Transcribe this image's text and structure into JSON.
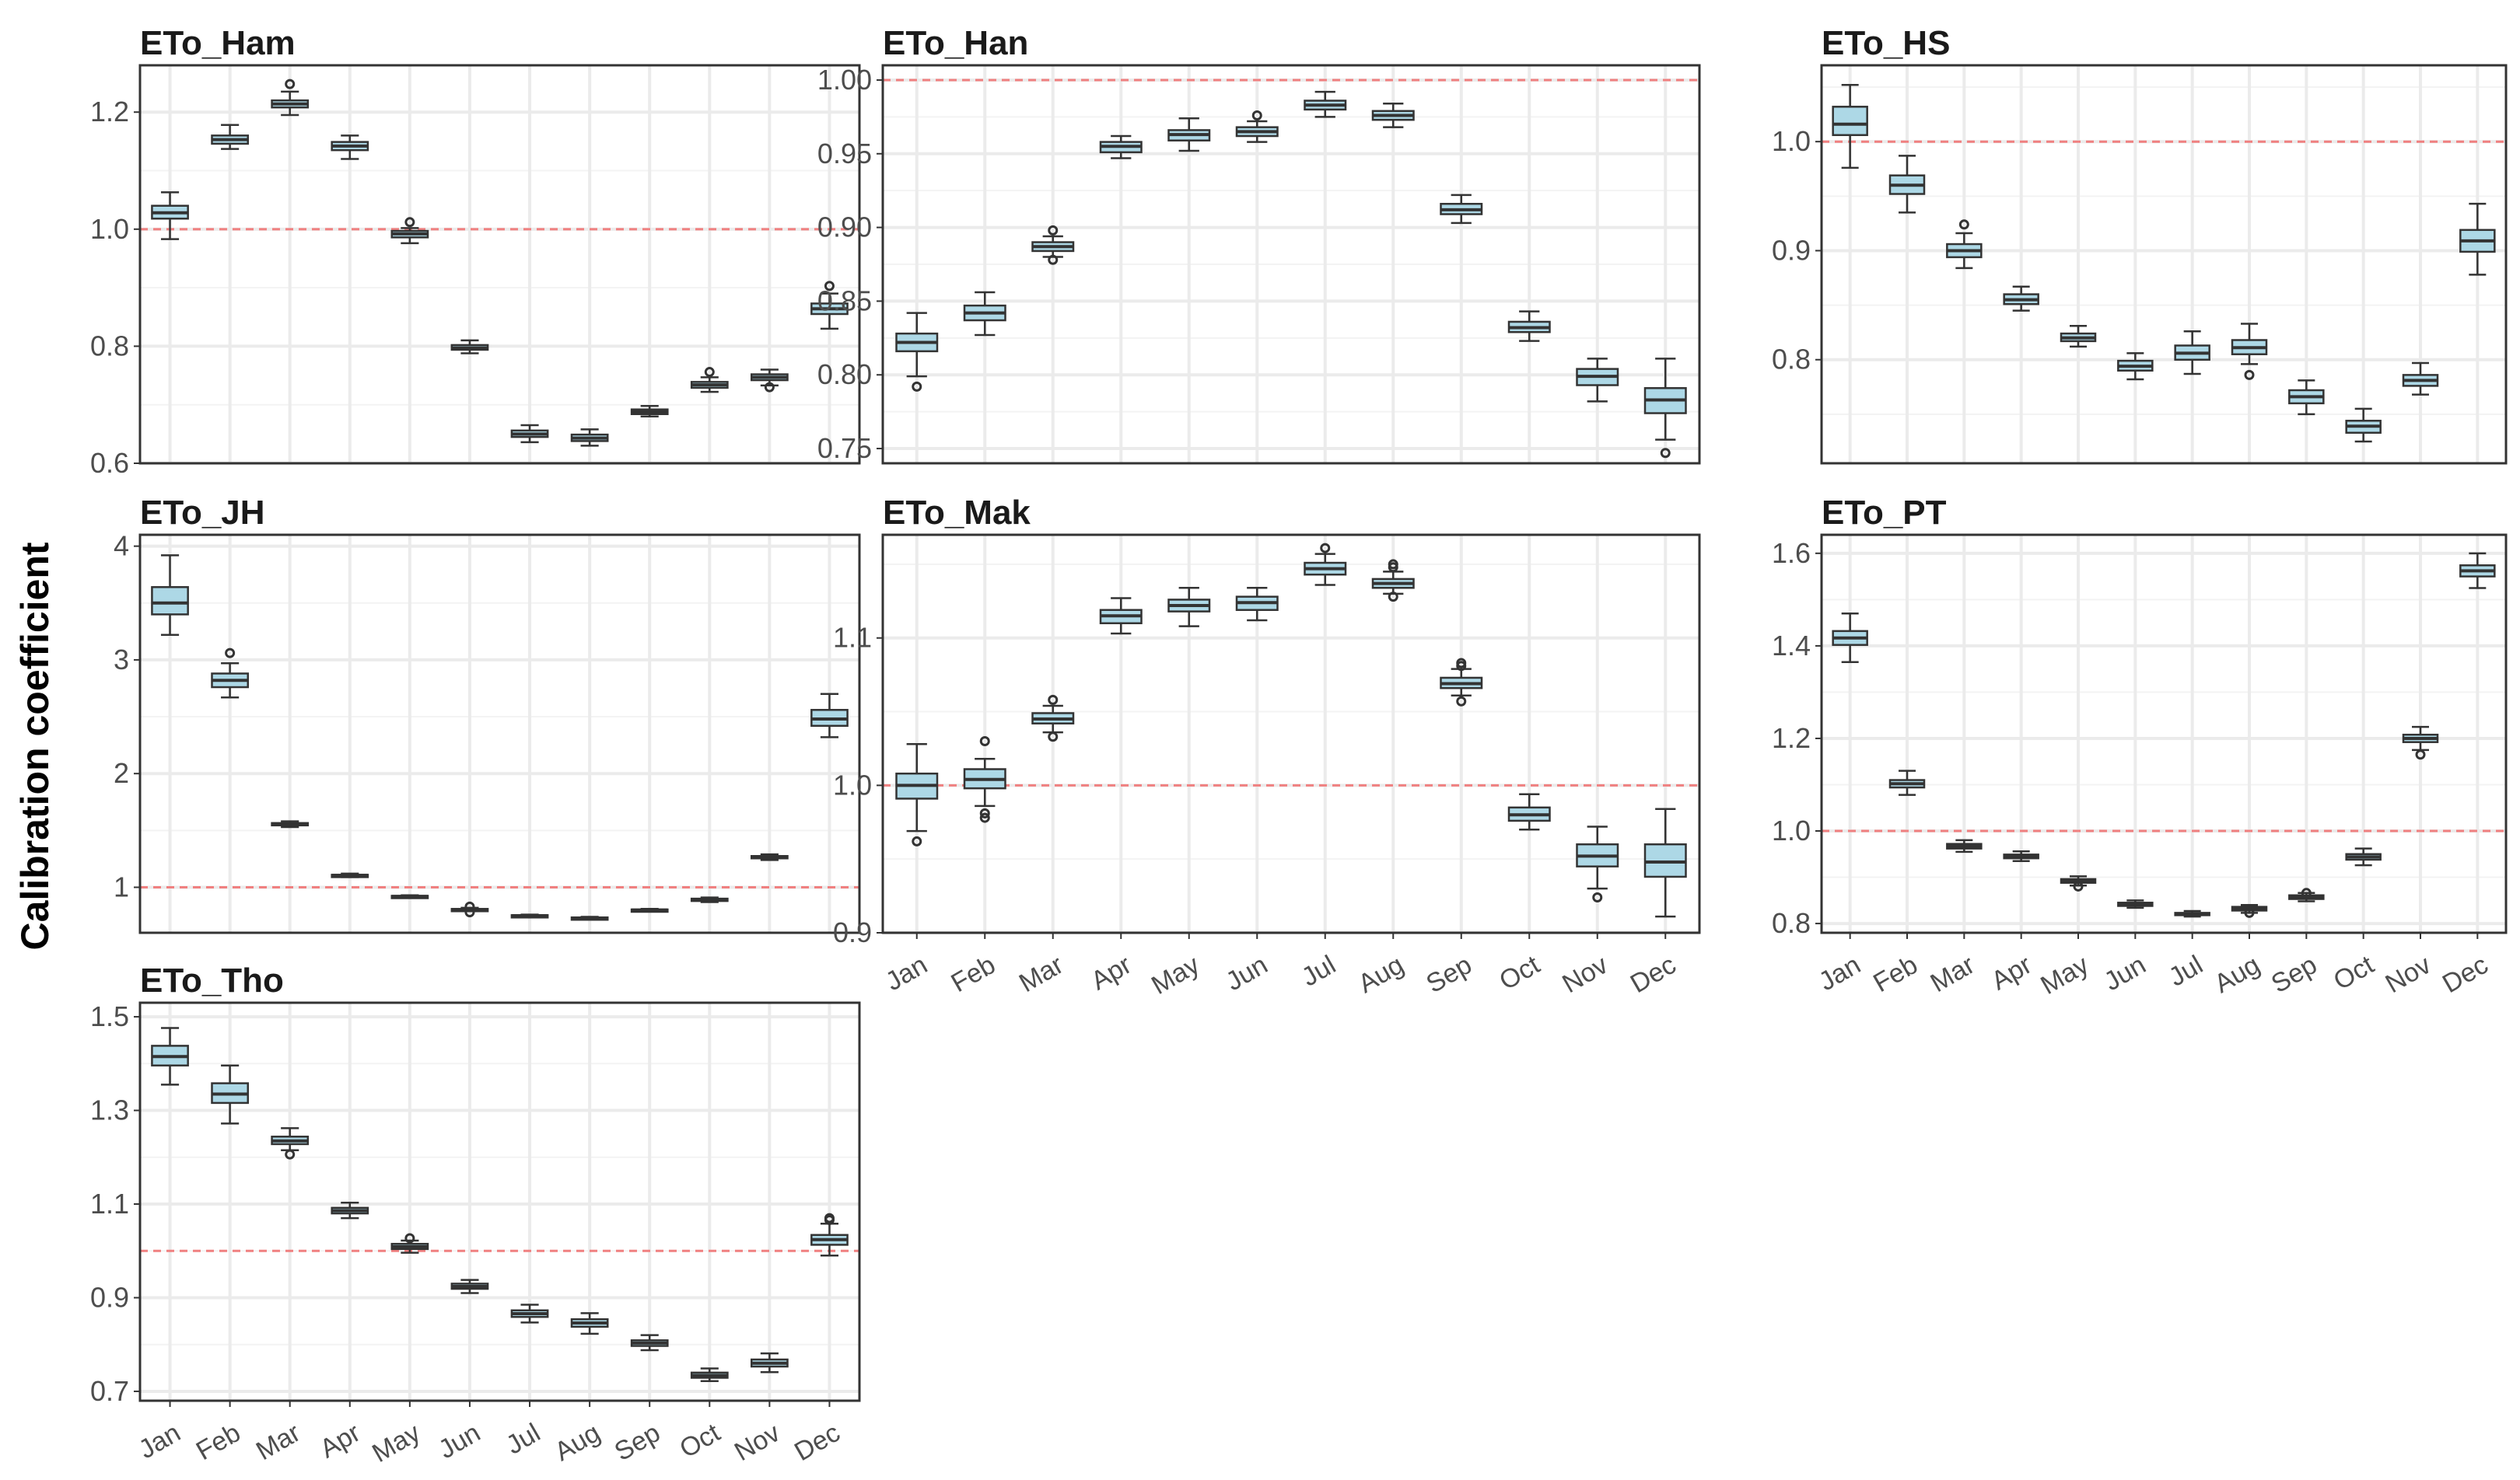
{
  "chart_data": {
    "type": "boxplot",
    "ylabel": "Calibration coefficient",
    "reference_line": 1.0,
    "colors": {
      "box_fill": "#add8e6",
      "box_stroke": "#333333",
      "reference_line": "#f08080",
      "grid": "#ebebeb",
      "panel_border": "#333333"
    },
    "categories": [
      "Jan",
      "Feb",
      "Mar",
      "Apr",
      "May",
      "Jun",
      "Jul",
      "Aug",
      "Sep",
      "Oct",
      "Nov",
      "Dec"
    ],
    "panels": [
      {
        "title": "ETo_Ham",
        "ylim": [
          0.6,
          1.28
        ],
        "yticks": [
          0.6,
          0.8,
          1.0,
          1.2
        ],
        "ytick_labels": [
          "0.6",
          "0.8",
          "1.0",
          "1.2"
        ],
        "show_x_labels": false,
        "boxes": [
          {
            "min": 0.983,
            "q1": 1.018,
            "median": 1.028,
            "q3": 1.04,
            "max": 1.063,
            "outliers": []
          },
          {
            "min": 1.137,
            "q1": 1.146,
            "median": 1.153,
            "q3": 1.16,
            "max": 1.178,
            "outliers": []
          },
          {
            "min": 1.195,
            "q1": 1.208,
            "median": 1.214,
            "q3": 1.22,
            "max": 1.235,
            "outliers": [
              1.248
            ]
          },
          {
            "min": 1.12,
            "q1": 1.135,
            "median": 1.142,
            "q3": 1.149,
            "max": 1.16,
            "outliers": []
          },
          {
            "min": 0.976,
            "q1": 0.986,
            "median": 0.992,
            "q3": 0.997,
            "max": 1.002,
            "outliers": [
              1.012
            ]
          },
          {
            "min": 0.788,
            "q1": 0.794,
            "median": 0.797,
            "q3": 0.802,
            "max": 0.81,
            "outliers": []
          },
          {
            "min": 0.636,
            "q1": 0.645,
            "median": 0.65,
            "q3": 0.656,
            "max": 0.665,
            "outliers": []
          },
          {
            "min": 0.63,
            "q1": 0.638,
            "median": 0.643,
            "q3": 0.649,
            "max": 0.658,
            "outliers": []
          },
          {
            "min": 0.68,
            "q1": 0.684,
            "median": 0.688,
            "q3": 0.692,
            "max": 0.698,
            "outliers": []
          },
          {
            "min": 0.722,
            "q1": 0.729,
            "median": 0.734,
            "q3": 0.739,
            "max": 0.747,
            "outliers": [
              0.756
            ]
          },
          {
            "min": 0.733,
            "q1": 0.742,
            "median": 0.747,
            "q3": 0.752,
            "max": 0.76,
            "outliers": [
              0.73
            ]
          },
          {
            "min": 0.83,
            "q1": 0.855,
            "median": 0.864,
            "q3": 0.873,
            "max": 0.89,
            "outliers": [
              0.903
            ]
          }
        ]
      },
      {
        "title": "ETo_Han",
        "ylim": [
          0.74,
          1.01
        ],
        "yticks": [
          0.75,
          0.8,
          0.85,
          0.9,
          0.95,
          1.0
        ],
        "ytick_labels": [
          "0.75",
          "0.80",
          "0.85",
          "0.90",
          "0.95",
          "1.00"
        ],
        "show_x_labels": false,
        "boxes": [
          {
            "min": 0.799,
            "q1": 0.816,
            "median": 0.822,
            "q3": 0.828,
            "max": 0.842,
            "outliers": [
              0.792
            ]
          },
          {
            "min": 0.827,
            "q1": 0.837,
            "median": 0.842,
            "q3": 0.847,
            "max": 0.856,
            "outliers": []
          },
          {
            "min": 0.88,
            "q1": 0.884,
            "median": 0.887,
            "q3": 0.89,
            "max": 0.894,
            "outliers": [
              0.898,
              0.878
            ]
          },
          {
            "min": 0.947,
            "q1": 0.951,
            "median": 0.955,
            "q3": 0.958,
            "max": 0.962,
            "outliers": []
          },
          {
            "min": 0.952,
            "q1": 0.959,
            "median": 0.963,
            "q3": 0.966,
            "max": 0.974,
            "outliers": []
          },
          {
            "min": 0.958,
            "q1": 0.962,
            "median": 0.965,
            "q3": 0.968,
            "max": 0.972,
            "outliers": [
              0.976
            ]
          },
          {
            "min": 0.975,
            "q1": 0.98,
            "median": 0.983,
            "q3": 0.986,
            "max": 0.992,
            "outliers": []
          },
          {
            "min": 0.968,
            "q1": 0.973,
            "median": 0.976,
            "q3": 0.979,
            "max": 0.984,
            "outliers": []
          },
          {
            "min": 0.903,
            "q1": 0.909,
            "median": 0.912,
            "q3": 0.916,
            "max": 0.922,
            "outliers": []
          },
          {
            "min": 0.823,
            "q1": 0.829,
            "median": 0.832,
            "q3": 0.836,
            "max": 0.843,
            "outliers": []
          },
          {
            "min": 0.782,
            "q1": 0.793,
            "median": 0.799,
            "q3": 0.804,
            "max": 0.811,
            "outliers": []
          },
          {
            "min": 0.756,
            "q1": 0.774,
            "median": 0.783,
            "q3": 0.791,
            "max": 0.811,
            "outliers": [
              0.747
            ]
          }
        ]
      },
      {
        "title": "ETo_HS",
        "ylim": [
          0.705,
          1.07
        ],
        "yticks": [
          0.8,
          0.9,
          1.0
        ],
        "ytick_labels": [
          "0.8",
          "0.9",
          "1.0"
        ],
        "show_x_labels": false,
        "boxes": [
          {
            "min": 0.976,
            "q1": 1.006,
            "median": 1.016,
            "q3": 1.032,
            "max": 1.052,
            "outliers": []
          },
          {
            "min": 0.935,
            "q1": 0.952,
            "median": 0.96,
            "q3": 0.969,
            "max": 0.987,
            "outliers": []
          },
          {
            "min": 0.884,
            "q1": 0.894,
            "median": 0.9,
            "q3": 0.906,
            "max": 0.916,
            "outliers": [
              0.924
            ]
          },
          {
            "min": 0.845,
            "q1": 0.851,
            "median": 0.855,
            "q3": 0.86,
            "max": 0.867,
            "outliers": []
          },
          {
            "min": 0.812,
            "q1": 0.817,
            "median": 0.82,
            "q3": 0.824,
            "max": 0.831,
            "outliers": []
          },
          {
            "min": 0.782,
            "q1": 0.79,
            "median": 0.794,
            "q3": 0.799,
            "max": 0.806,
            "outliers": []
          },
          {
            "min": 0.787,
            "q1": 0.8,
            "median": 0.806,
            "q3": 0.813,
            "max": 0.826,
            "outliers": []
          },
          {
            "min": 0.796,
            "q1": 0.805,
            "median": 0.811,
            "q3": 0.818,
            "max": 0.833,
            "outliers": [
              0.786
            ]
          },
          {
            "min": 0.75,
            "q1": 0.76,
            "median": 0.766,
            "q3": 0.772,
            "max": 0.781,
            "outliers": []
          },
          {
            "min": 0.725,
            "q1": 0.733,
            "median": 0.739,
            "q3": 0.744,
            "max": 0.755,
            "outliers": []
          },
          {
            "min": 0.768,
            "q1": 0.776,
            "median": 0.781,
            "q3": 0.786,
            "max": 0.797,
            "outliers": []
          },
          {
            "min": 0.878,
            "q1": 0.899,
            "median": 0.909,
            "q3": 0.919,
            "max": 0.943,
            "outliers": []
          }
        ]
      },
      {
        "title": "ETo_JH",
        "ylim": [
          0.6,
          4.1
        ],
        "yticks": [
          1,
          2,
          3,
          4
        ],
        "ytick_labels": [
          "1",
          "2",
          "3",
          "4"
        ],
        "show_x_labels": false,
        "boxes": [
          {
            "min": 3.22,
            "q1": 3.4,
            "median": 3.5,
            "q3": 3.64,
            "max": 3.92,
            "outliers": []
          },
          {
            "min": 2.67,
            "q1": 2.76,
            "median": 2.82,
            "q3": 2.88,
            "max": 2.97,
            "outliers": [
              3.06
            ]
          },
          {
            "min": 1.53,
            "q1": 1.546,
            "median": 1.555,
            "q3": 1.565,
            "max": 1.58,
            "outliers": []
          },
          {
            "min": 1.09,
            "q1": 1.1,
            "median": 1.105,
            "q3": 1.11,
            "max": 1.12,
            "outliers": []
          },
          {
            "min": 0.91,
            "q1": 0.915,
            "median": 0.92,
            "q3": 0.925,
            "max": 0.93,
            "outliers": []
          },
          {
            "min": 0.79,
            "q1": 0.795,
            "median": 0.8,
            "q3": 0.81,
            "max": 0.82,
            "outliers": [
              0.83,
              0.78
            ]
          },
          {
            "min": 0.74,
            "q1": 0.745,
            "median": 0.75,
            "q3": 0.755,
            "max": 0.76,
            "outliers": []
          },
          {
            "min": 0.72,
            "q1": 0.725,
            "median": 0.73,
            "q3": 0.735,
            "max": 0.74,
            "outliers": []
          },
          {
            "min": 0.79,
            "q1": 0.795,
            "median": 0.8,
            "q3": 0.805,
            "max": 0.81,
            "outliers": []
          },
          {
            "min": 0.87,
            "q1": 0.88,
            "median": 0.89,
            "q3": 0.9,
            "max": 0.91,
            "outliers": []
          },
          {
            "min": 1.24,
            "q1": 1.255,
            "median": 1.265,
            "q3": 1.275,
            "max": 1.29,
            "outliers": []
          },
          {
            "min": 2.32,
            "q1": 2.42,
            "median": 2.48,
            "q3": 2.56,
            "max": 2.7,
            "outliers": []
          }
        ]
      },
      {
        "title": "ETo_Mak",
        "ylim": [
          0.9,
          1.17
        ],
        "yticks": [
          0.9,
          1.0,
          1.1
        ],
        "ytick_labels": [
          "0.9",
          "1.0",
          "1.1"
        ],
        "show_x_labels": true,
        "boxes": [
          {
            "min": 0.969,
            "q1": 0.991,
            "median": 1.0,
            "q3": 1.008,
            "max": 1.028,
            "outliers": [
              0.962
            ]
          },
          {
            "min": 0.986,
            "q1": 0.998,
            "median": 1.004,
            "q3": 1.011,
            "max": 1.018,
            "outliers": [
              1.03,
              0.978,
              0.981
            ]
          },
          {
            "min": 1.036,
            "q1": 1.042,
            "median": 1.045,
            "q3": 1.049,
            "max": 1.054,
            "outliers": [
              1.058,
              1.033
            ]
          },
          {
            "min": 1.103,
            "q1": 1.11,
            "median": 1.115,
            "q3": 1.119,
            "max": 1.127,
            "outliers": []
          },
          {
            "min": 1.108,
            "q1": 1.118,
            "median": 1.122,
            "q3": 1.126,
            "max": 1.134,
            "outliers": []
          },
          {
            "min": 1.112,
            "q1": 1.119,
            "median": 1.124,
            "q3": 1.128,
            "max": 1.134,
            "outliers": []
          },
          {
            "min": 1.136,
            "q1": 1.143,
            "median": 1.147,
            "q3": 1.151,
            "max": 1.157,
            "outliers": [
              1.161
            ]
          },
          {
            "min": 1.13,
            "q1": 1.134,
            "median": 1.137,
            "q3": 1.14,
            "max": 1.145,
            "outliers": [
              1.15,
              1.148,
              1.128
            ]
          },
          {
            "min": 1.061,
            "q1": 1.066,
            "median": 1.069,
            "q3": 1.073,
            "max": 1.079,
            "outliers": [
              1.083,
              1.081,
              1.057
            ]
          },
          {
            "min": 0.97,
            "q1": 0.976,
            "median": 0.98,
            "q3": 0.985,
            "max": 0.994,
            "outliers": []
          },
          {
            "min": 0.93,
            "q1": 0.945,
            "median": 0.952,
            "q3": 0.96,
            "max": 0.972,
            "outliers": [
              0.924
            ]
          },
          {
            "min": 0.911,
            "q1": 0.938,
            "median": 0.948,
            "q3": 0.96,
            "max": 0.984,
            "outliers": []
          }
        ]
      },
      {
        "title": "ETo_PT",
        "ylim": [
          0.78,
          1.64
        ],
        "yticks": [
          0.8,
          1.0,
          1.2,
          1.4,
          1.6
        ],
        "ytick_labels": [
          "0.8",
          "1.0",
          "1.2",
          "1.4",
          "1.6"
        ],
        "show_x_labels": true,
        "boxes": [
          {
            "min": 1.365,
            "q1": 1.402,
            "median": 1.417,
            "q3": 1.432,
            "max": 1.47,
            "outliers": []
          },
          {
            "min": 1.078,
            "q1": 1.094,
            "median": 1.102,
            "q3": 1.11,
            "max": 1.13,
            "outliers": []
          },
          {
            "min": 0.955,
            "q1": 0.962,
            "median": 0.967,
            "q3": 0.972,
            "max": 0.98,
            "outliers": []
          },
          {
            "min": 0.935,
            "q1": 0.941,
            "median": 0.945,
            "q3": 0.949,
            "max": 0.956,
            "outliers": []
          },
          {
            "min": 0.882,
            "q1": 0.888,
            "median": 0.892,
            "q3": 0.896,
            "max": 0.902,
            "outliers": [
              0.88
            ]
          },
          {
            "min": 0.834,
            "q1": 0.838,
            "median": 0.842,
            "q3": 0.845,
            "max": 0.85,
            "outliers": []
          },
          {
            "min": 0.815,
            "q1": 0.818,
            "median": 0.82,
            "q3": 0.823,
            "max": 0.827,
            "outliers": []
          },
          {
            "min": 0.823,
            "q1": 0.828,
            "median": 0.832,
            "q3": 0.836,
            "max": 0.84,
            "outliers": [
              0.823
            ]
          },
          {
            "min": 0.848,
            "q1": 0.853,
            "median": 0.857,
            "q3": 0.861,
            "max": 0.866,
            "outliers": [
              0.866
            ]
          },
          {
            "min": 0.926,
            "q1": 0.938,
            "median": 0.944,
            "q3": 0.95,
            "max": 0.962,
            "outliers": []
          },
          {
            "min": 1.175,
            "q1": 1.192,
            "median": 1.2,
            "q3": 1.208,
            "max": 1.225,
            "outliers": [
              1.165
            ]
          },
          {
            "min": 1.525,
            "q1": 1.55,
            "median": 1.562,
            "q3": 1.574,
            "max": 1.6,
            "outliers": []
          }
        ]
      },
      {
        "title": "ETo_Tho",
        "ylim": [
          0.68,
          1.53
        ],
        "yticks": [
          0.7,
          0.9,
          1.1,
          1.3,
          1.5
        ],
        "ytick_labels": [
          "0.7",
          "0.9",
          "1.1",
          "1.3",
          "1.5"
        ],
        "show_x_labels": true,
        "boxes": [
          {
            "min": 1.355,
            "q1": 1.396,
            "median": 1.415,
            "q3": 1.438,
            "max": 1.476,
            "outliers": []
          },
          {
            "min": 1.272,
            "q1": 1.316,
            "median": 1.335,
            "q3": 1.358,
            "max": 1.396,
            "outliers": []
          },
          {
            "min": 1.215,
            "q1": 1.228,
            "median": 1.235,
            "q3": 1.244,
            "max": 1.262,
            "outliers": [
              1.206
            ]
          },
          {
            "min": 1.07,
            "q1": 1.08,
            "median": 1.086,
            "q3": 1.092,
            "max": 1.103,
            "outliers": []
          },
          {
            "min": 0.996,
            "q1": 1.004,
            "median": 1.009,
            "q3": 1.015,
            "max": 1.022,
            "outliers": [
              1.027
            ]
          },
          {
            "min": 0.91,
            "q1": 0.919,
            "median": 0.924,
            "q3": 0.93,
            "max": 0.938,
            "outliers": []
          },
          {
            "min": 0.847,
            "q1": 0.859,
            "median": 0.866,
            "q3": 0.873,
            "max": 0.885,
            "outliers": []
          },
          {
            "min": 0.823,
            "q1": 0.838,
            "median": 0.846,
            "q3": 0.854,
            "max": 0.867,
            "outliers": []
          },
          {
            "min": 0.788,
            "q1": 0.797,
            "median": 0.803,
            "q3": 0.809,
            "max": 0.82,
            "outliers": []
          },
          {
            "min": 0.722,
            "q1": 0.729,
            "median": 0.734,
            "q3": 0.74,
            "max": 0.749,
            "outliers": []
          },
          {
            "min": 0.741,
            "q1": 0.753,
            "median": 0.76,
            "q3": 0.768,
            "max": 0.781,
            "outliers": []
          },
          {
            "min": 0.99,
            "q1": 1.013,
            "median": 1.024,
            "q3": 1.034,
            "max": 1.058,
            "outliers": [
              1.066,
              1.068,
              1.07
            ]
          }
        ]
      }
    ]
  }
}
